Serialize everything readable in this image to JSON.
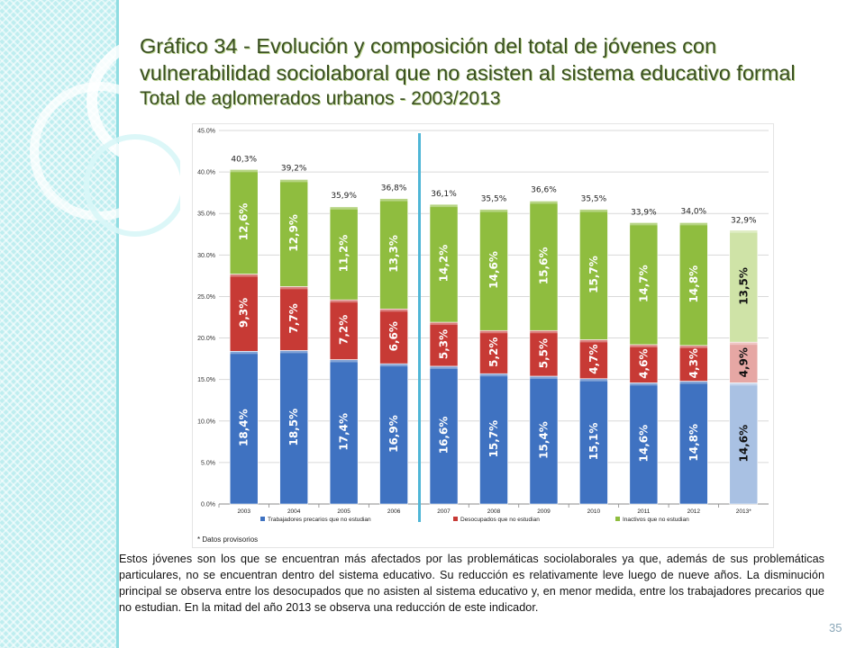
{
  "slide": {
    "title_line1": "Gráfico 34 - Evolución y composición del total de jóvenes con",
    "title_line2": "vulnerabilidad sociolaboral que no asisten al sistema educativo formal",
    "title_line3": "Total de aglomerados urbanos - 2003/2013",
    "body_text": "Estos jóvenes son los que se encuentran más afectados por las problemáticas sociolaborales ya que, además de sus problemáticas particulares, no se encuentran dentro del sistema educativo.  Su reducción es relativamente leve luego de nueve años. La disminución principal se observa entre los desocupados que no asisten al sistema educativo y, en menor medida, entre los trabajadores precarios que no estudian. En la mitad del año 2013 se observa una reducción de este indicador.",
    "page_number": "35",
    "colors": {
      "title": "#3a4f22",
      "band": "#bfeef0",
      "divider": "#4fb6d6"
    }
  },
  "chart_data": {
    "type": "bar",
    "stacked": true,
    "categories": [
      "2003",
      "2004",
      "2005",
      "2006",
      "2007",
      "2008",
      "2009",
      "2010",
      "2011",
      "2012",
      "2013*"
    ],
    "series": [
      {
        "name": "Trabajadores precarios que no estudian",
        "values": [
          18.4,
          18.5,
          17.4,
          16.9,
          16.6,
          15.7,
          15.4,
          15.1,
          14.6,
          14.8,
          14.6
        ],
        "labels": [
          "18,4%",
          "18,5%",
          "17,4%",
          "16,9%",
          "16,6%",
          "15,7%",
          "15,4%",
          "15,1%",
          "14,6%",
          "14,8%",
          "14,6%"
        ],
        "color": "#3f72c1",
        "color_provisional": "#a9c1e3"
      },
      {
        "name": "Desocupados que no estudian",
        "values": [
          9.3,
          7.7,
          7.2,
          6.6,
          5.3,
          5.2,
          5.5,
          4.7,
          4.6,
          4.3,
          4.9
        ],
        "labels": [
          "9,3%",
          "7,7%",
          "7,2%",
          "6,6%",
          "5,3%",
          "5,2%",
          "5,5%",
          "4,7%",
          "4,6%",
          "4,3%",
          "4,9%"
        ],
        "color": "#c73a35",
        "color_provisional": "#e6a7a4"
      },
      {
        "name": "Inactivos que no estudian",
        "values": [
          12.6,
          12.9,
          11.2,
          13.3,
          14.2,
          14.6,
          15.6,
          15.7,
          14.7,
          14.8,
          13.5
        ],
        "labels": [
          "12,6%",
          "12,9%",
          "11,2%",
          "13,3%",
          "14,2%",
          "14,6%",
          "15,6%",
          "15,7%",
          "14,7%",
          "14,8%",
          "13,5%"
        ],
        "color": "#8fbd3f",
        "color_provisional": "#cfe3a7"
      }
    ],
    "totals": [
      40.3,
      39.2,
      35.9,
      36.8,
      36.1,
      35.5,
      36.6,
      35.5,
      33.9,
      34.0,
      32.9
    ],
    "total_labels": [
      "40,3%",
      "39,2%",
      "35,9%",
      "36,8%",
      "36,1%",
      "35,5%",
      "36,6%",
      "35,5%",
      "33,9%",
      "34,0%",
      "32,9%"
    ],
    "ylim": [
      0,
      45
    ],
    "yticks": [
      0,
      5,
      10,
      15,
      20,
      25,
      30,
      35,
      40,
      45
    ],
    "ytick_labels": [
      "0.0%",
      "5.0%",
      "10.0%",
      "15.0%",
      "20.0%",
      "25.0%",
      "30.0%",
      "35.0%",
      "40.0%",
      "45.0%"
    ],
    "grid": true,
    "legend_position": "bottom",
    "note": "* Datos provisorios",
    "provisional_index": 10
  }
}
